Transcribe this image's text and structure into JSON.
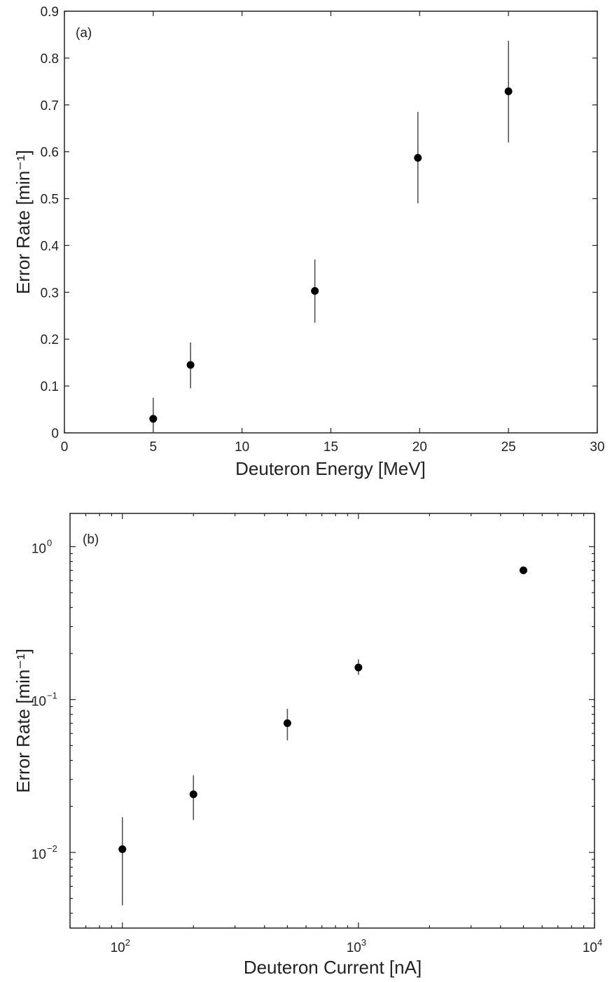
{
  "chart_data": [
    {
      "type": "scatter",
      "panel_label": "(a)",
      "xlabel": "Deuteron Energy [MeV]",
      "ylabel": "Error Rate [min⁻¹]",
      "xlim": [
        0,
        30
      ],
      "ylim": [
        0,
        0.9
      ],
      "xscale": "linear",
      "yscale": "linear",
      "xticks": [
        0,
        5,
        10,
        15,
        20,
        25,
        30
      ],
      "xticklabels": [
        "0",
        "5",
        "10",
        "15",
        "20",
        "25",
        "30"
      ],
      "yticks": [
        0,
        0.1,
        0.2,
        0.3,
        0.4,
        0.5,
        0.6,
        0.7,
        0.8,
        0.9
      ],
      "yticklabels": [
        "0",
        "0.1",
        "0.2",
        "0.3",
        "0.4",
        "0.5",
        "0.6",
        "0.7",
        "0.8",
        "0.9"
      ],
      "grid": false,
      "series": [
        {
          "x": [
            5,
            7.1,
            14.1,
            19.9,
            25
          ],
          "y": [
            0.03,
            0.145,
            0.303,
            0.587,
            0.729
          ],
          "yerr_low": [
            0.0,
            0.095,
            0.235,
            0.49,
            0.62
          ],
          "yerr_high": [
            0.075,
            0.193,
            0.37,
            0.685,
            0.837
          ]
        }
      ]
    },
    {
      "type": "scatter",
      "panel_label": "(b)",
      "xlabel": "Deuteron Current [nA]",
      "ylabel": "Error Rate [min⁻¹]",
      "xlim": [
        60,
        10000
      ],
      "ylim": [
        0.0032,
        1.65
      ],
      "xscale": "log",
      "yscale": "log",
      "xticks": [
        100,
        1000,
        10000
      ],
      "xtick_base": [
        "10",
        "10",
        "10"
      ],
      "xtick_exp": [
        "2",
        "3",
        "4"
      ],
      "yticks": [
        0.01,
        0.1,
        1
      ],
      "ytick_base": [
        "10",
        "10",
        "10"
      ],
      "ytick_exp": [
        "−2",
        "−1",
        "0"
      ],
      "grid": false,
      "series": [
        {
          "x": [
            100,
            200,
            500,
            1000,
            5000
          ],
          "y": [
            0.0105,
            0.024,
            0.07,
            0.162,
            0.7
          ],
          "yerr_low": [
            0.0045,
            0.0163,
            0.054,
            0.145,
            0.68
          ],
          "yerr_high": [
            0.017,
            0.032,
            0.087,
            0.183,
            0.72
          ]
        }
      ]
    }
  ]
}
